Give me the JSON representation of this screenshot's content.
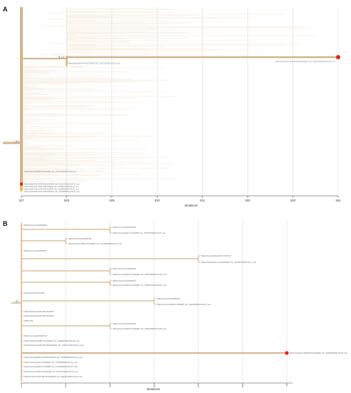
{
  "chart_data": [
    {
      "panel": "A",
      "type": "tree",
      "xlabel": "Mutations",
      "xlim": [
        527,
        534
      ],
      "x_ticks": [
        527,
        528,
        529,
        530,
        531,
        532,
        533,
        534
      ],
      "grid": true,
      "internal_nodes": [
        {
          "label": "B.1",
          "x": 527
        },
        {
          "label": "B.1.5",
          "x": 528
        }
      ],
      "highlighted_tips": [
        {
          "label": "hMpxv/Italy/APU-IZSPB-0001/2022|EPI_ISL_13362784|2022-06-08_new",
          "x": 534,
          "parent": "B.1.5"
        },
        {
          "label": "hMpxv/Italy/APU-IZSPB-0002/2022|EPI_ISL_13362784|2022-06-11_new",
          "x": 527,
          "parent": "B.1"
        }
      ],
      "labeled_tips": [
        {
          "label": "hMpxv/Italy/Italy/IHH-PHI/2022|EPI_ISL_13331710|2022-05-23_new",
          "x": 528,
          "parent": "B.1.5"
        },
        {
          "label": "hMpxv/Italy/Italy/INMI-Pt1/2022|EPI_ISL_13251120|2022-05-19_new",
          "x": 527,
          "parent": "B.1"
        },
        {
          "label": "hMpxv/Italy/LOM-UniMI-1MF/2022|EPI_ISL_13359793|2022-05-26_new",
          "x": 527,
          "parent": "B.1"
        },
        {
          "label": "hMpxv/Italy/LOM-UniMI-1SD/2022|EPI_ISL_13358648|2022-05-26_new",
          "x": 527,
          "parent": "B.1"
        },
        {
          "label": "hMpxv/Spain/MD-HULP-4061/2022|EPI_ISL_13449888|2022-05-30_new",
          "x": 527,
          "parent": "B.1"
        }
      ]
    },
    {
      "panel": "B",
      "type": "tree",
      "xlabel": "Mutations",
      "xlim": [
        1,
        7
      ],
      "x_ticks": [
        1,
        2,
        3,
        4,
        5,
        6,
        7
      ],
      "grid": true,
      "internal_nodes": [
        {
          "label": "B.1",
          "x": 1
        }
      ],
      "highlighted_tips": [
        {
          "label": "hMpxv/Italy/APU-IZSPB-0001/2022|EPI_ISL_13362784|2022-06-08_new",
          "x": 7
        }
      ],
      "labeled_tips": [
        {
          "label": "MPXV/Germany/2022/RKI24",
          "x": 1
        },
        {
          "label": "hMpxv/Germany/2022/RKI19",
          "x": 3
        },
        {
          "label": "hMpxv/Germany/BY-IVI-2022|EPI_ISL_13749752|2022-06-07_new",
          "x": 3
        },
        {
          "label": "hMpxv/Germany/2022/RKI20",
          "x": 2
        },
        {
          "label": "hMpxv/Germany/BW-IVI-2022|EPI_ISL_13749630|2022-06-07_new",
          "x": 2
        },
        {
          "label": "MPXV/Germany/2022/RKI37",
          "x": 1
        },
        {
          "label": "hMpxv/Human/Taiwan/CDC-TW-2022",
          "x": 5
        },
        {
          "label": "hMpxv/Taiwan/CDC-TW-1/2022|EPI_ISL_13435977|2022-06-27_new",
          "x": 5
        },
        {
          "label": "hMpxv/Germany/2022/RKI30",
          "x": 3
        },
        {
          "label": "hMpxv/Germany/BW-IVI-2022|EPI_ISL_13491245|2022-06-06_new",
          "x": 3
        },
        {
          "label": "hMpxv/Germany/2022/RKI31",
          "x": 3
        },
        {
          "label": "hMpxv/Germany/BW-IVI-2022|EPI_ISL_13491297|2022-06-06_new",
          "x": 3
        },
        {
          "label": "Monkeypox/PT0001/2022",
          "x": 1
        },
        {
          "label": "hMpxv/Germany/2022/RKI43",
          "x": 4
        },
        {
          "label": "hMpxv/Germany/BW-IVI-2022|EPI_ISL_13491338|2022-06-06_new",
          "x": 4
        },
        {
          "label": "hMpxv/Switzerland/ZH-IMV-Sk4/2022",
          "x": 1
        },
        {
          "label": "hMpxv/Switzerland/ZH-IMV-Sk6/2022",
          "x": 1
        },
        {
          "label": "MPXV-P02",
          "x": 1
        },
        {
          "label": "hMpxv/Germany/2022/RKI29",
          "x": 3
        },
        {
          "label": "hMpxv/Germany/BW-IVI-2022|EPI_ISL_13491254|2022-06-06_new",
          "x": 3
        },
        {
          "label": "hMpxv/Germany/2022/RKI27",
          "x": 1
        },
        {
          "label": "hMpxv/Switzerland/BE-IVI-2022|EPI_ISL_13388144|2022-06-06_new",
          "x": 1
        },
        {
          "label": "hMpxv/Switzerland/ZH-IMV-Sk4/2022|EPI_ISL_13327712|2022-06-01_new",
          "x": 1
        },
        {
          "label": "hMpxv/Portugal/INSA-PT0025/2022|EPI_ISL_13486893|2022-06-24_new",
          "x": 1
        },
        {
          "label": "hMpxv/Germany/BY-IVI-2022|EPI_ISL_13749953|2022-06-07_new",
          "x": 1
        },
        {
          "label": "hMpxv/Germany/BW-IVI-2022|EPI_ISL_13749923|2022-06-07_new",
          "x": 1
        },
        {
          "label": "hMpxv/Germany/NW-IVI-2022|EPI_ISL_13377143|2022-05-31_new",
          "x": 1
        },
        {
          "label": "hMpxv/USA/CA-CDC-MB-001/2022|EPI_ISL_13449173|2022-06-02_new",
          "x": 1
        }
      ]
    }
  ],
  "colors": {
    "branch": "#d2b48c",
    "grid": "#d9d9d9",
    "highlight": "#e8231e",
    "yellow_marker": "#f0c23c"
  }
}
